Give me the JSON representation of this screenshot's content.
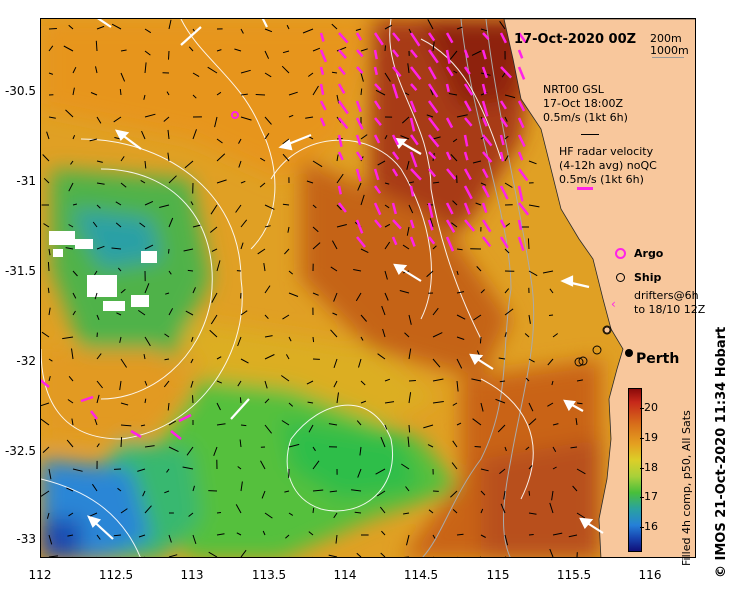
{
  "title": "17-Oct-2020 00Z",
  "depth_legend": {
    "line1": "200m",
    "line2": "1000m"
  },
  "gsl_legend": {
    "line1": "NRT00 GSL",
    "line2": "17-Oct 18:00Z",
    "line3": "0.5m/s (1kt 6h)"
  },
  "hf_legend": {
    "line1": "HF radar velocity",
    "line2": "(4-12h avg) noQC",
    "line3": "0.5m/s (1kt 6h)"
  },
  "argo_label": "Argo",
  "ship_label": "Ship",
  "drifter_label": {
    "line1": "drifters@6h",
    "line2": "to 18/10 12Z"
  },
  "city_label": "Perth",
  "colorbar": {
    "label": "Filled 4h comp, p50, All Sats",
    "ticks": [
      "20",
      "19",
      "18",
      "17",
      "16"
    ]
  },
  "credit": "© IMOS 21-Oct-2020 11:34 Hobart",
  "axes": {
    "y_ticks": [
      "-30.5",
      "-31",
      "-31.5",
      "-32",
      "-32.5",
      "-33"
    ],
    "x_ticks": [
      "112",
      "112.5",
      "113",
      "113.5",
      "114",
      "114.5",
      "115",
      "115.5",
      "116"
    ]
  },
  "colors": {
    "land": "#f8c79c",
    "hf_vector": "#ff22e8",
    "warm_sst": "#c6281a",
    "cool_sst": "#48bf3a",
    "cold_sst": "#2580d8"
  }
}
